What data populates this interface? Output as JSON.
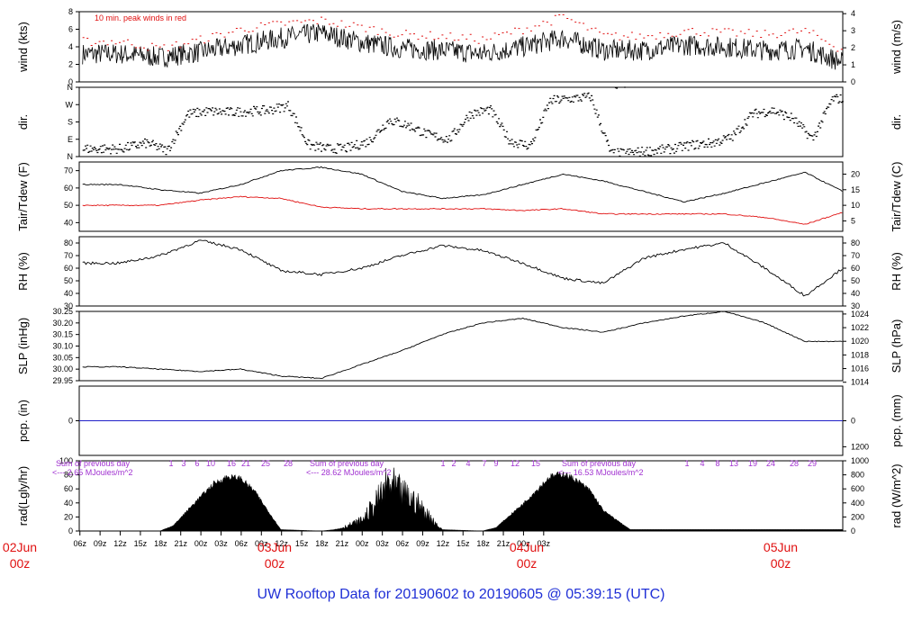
{
  "title": "UW Rooftop Data for 20190602  to  20190605 @ 05:39:15  (UTC)",
  "colors": {
    "title": "#1f2fd6",
    "dates": "#e01010",
    "peak": "#e01010",
    "dew": "#e01010",
    "precip": "#2020c8",
    "solar_note": "#a030d0",
    "line": "#000000"
  },
  "x_axis": {
    "hour_ticks": [
      "06z",
      "09z",
      "12z",
      "15z",
      "18z",
      "21z",
      "00z",
      "03z",
      "06z",
      "09z",
      "12z",
      "15z",
      "18z",
      "21z",
      "00z",
      "03z",
      "06z",
      "09z",
      "12z",
      "15z",
      "18z",
      "21z",
      "00z",
      "03z"
    ],
    "date_labels": [
      {
        "date": "02Jun",
        "time": "00z"
      },
      {
        "date": "03Jun",
        "time": "00z"
      },
      {
        "date": "04Jun",
        "time": "00z"
      },
      {
        "date": "05Jun",
        "time": "00z"
      }
    ]
  },
  "chart_data": [
    {
      "type": "line",
      "name": "wind",
      "ylabel": "wind (kts)",
      "ylabel_right": "wind (m/s)",
      "ylim": [
        0,
        8
      ],
      "yticks": [
        "0",
        "2",
        "4",
        "6",
        "8"
      ],
      "yticks_right": [
        "0",
        "1",
        "2",
        "3",
        "4"
      ],
      "annotation": "10 min. peak winds in red",
      "x_hours": [
        6,
        12,
        18,
        24,
        30,
        36,
        42,
        48,
        54,
        60,
        66,
        72,
        78,
        84,
        90,
        96,
        102,
        108,
        113.6
      ],
      "series": [
        {
          "values": [
            3.2,
            2.8,
            3.4,
            4.2,
            5.0,
            5.6,
            4.5,
            3.8,
            3.6,
            3.2,
            4.0,
            5.0,
            3.6,
            3.6,
            4.2,
            4.0,
            3.6,
            3.8,
            2.2
          ]
        },
        {
          "values": [
            4.4,
            3.6,
            4.6,
            5.8,
            6.4,
            6.8,
            6.0,
            5.2,
            5.0,
            4.6,
            5.8,
            7.2,
            5.0,
            5.0,
            5.6,
            5.4,
            5.2,
            5.6,
            3.4
          ]
        }
      ]
    },
    {
      "type": "scatter",
      "name": "direction",
      "ylabel": "dir.",
      "ylabel_right": "dir.",
      "yticks": [
        "N",
        "E",
        "S",
        "W",
        "N"
      ],
      "x_hours": [
        6,
        10,
        13,
        16,
        19,
        22,
        25,
        28,
        31,
        34,
        37,
        40,
        43,
        46,
        49,
        52,
        55,
        58,
        61,
        64,
        67,
        70,
        73,
        76,
        79,
        82,
        85,
        88,
        91,
        94,
        97,
        100,
        103,
        106,
        109,
        112
      ],
      "series": [
        {
          "values": [
            40,
            70,
            30,
            220,
            235,
            230,
            235,
            240,
            265,
            60,
            40,
            45,
            80,
            190,
            160,
            110,
            90,
            220,
            245,
            80,
            55,
            290,
            300,
            310,
            15,
            20,
            30,
            40,
            60,
            70,
            100,
            220,
            240,
            200,
            90,
            300
          ]
        }
      ]
    },
    {
      "type": "line",
      "name": "temperature",
      "ylabel": "Tair/Tdew (F)",
      "ylabel_right": "Tair/Tdew (C)",
      "ylim": [
        35,
        75
      ],
      "yticks": [
        "40",
        "50",
        "60",
        "70"
      ],
      "yticks_right": [
        "5",
        "10",
        "15",
        "20"
      ],
      "x_hours": [
        6,
        12,
        18,
        24,
        30,
        36,
        42,
        48,
        54,
        60,
        66,
        72,
        78,
        84,
        90,
        96,
        102,
        108,
        113.6
      ],
      "series": [
        {
          "values": [
            62,
            59,
            57,
            62,
            70,
            72,
            68,
            58,
            54,
            56,
            62,
            68,
            64,
            58,
            52,
            57,
            63,
            69,
            58
          ]
        },
        {
          "values": [
            50,
            50,
            53,
            55,
            54,
            49,
            48,
            48,
            48,
            48,
            47,
            48,
            45,
            45,
            45,
            45,
            43,
            39,
            46
          ]
        }
      ]
    },
    {
      "type": "line",
      "name": "relative-humidity",
      "ylabel": "RH (%)",
      "ylabel_right": "RH (%)",
      "ylim": [
        30,
        85
      ],
      "yticks": [
        "30",
        "40",
        "50",
        "60",
        "70",
        "80"
      ],
      "yticks_right": [
        "30",
        "40",
        "50",
        "60",
        "70",
        "80"
      ],
      "x_hours": [
        6,
        12,
        18,
        24,
        30,
        36,
        42,
        48,
        54,
        60,
        66,
        72,
        78,
        84,
        90,
        96,
        102,
        108,
        113.6
      ],
      "series": [
        {
          "values": [
            64,
            70,
            82,
            75,
            58,
            55,
            60,
            70,
            78,
            74,
            64,
            52,
            48,
            68,
            75,
            80,
            60,
            38,
            60
          ]
        }
      ]
    },
    {
      "type": "line",
      "name": "pressure",
      "ylabel": "SLP (inHg)",
      "ylabel_right": "SLP (hPa)",
      "ylim": [
        29.95,
        30.25
      ],
      "yticks": [
        "29.95",
        "30.00",
        "30.05",
        "30.10",
        "30.15",
        "30.20",
        "30.25"
      ],
      "yticks_right": [
        "1014",
        "1016",
        "1018",
        "1020",
        "1022",
        "1024"
      ],
      "x_hours": [
        6,
        12,
        18,
        24,
        30,
        36,
        42,
        48,
        54,
        60,
        66,
        72,
        78,
        84,
        90,
        96,
        102,
        108,
        113.6
      ],
      "series": [
        {
          "values": [
            30.01,
            30.0,
            29.99,
            30.0,
            29.97,
            29.96,
            30.02,
            30.08,
            30.15,
            30.2,
            30.22,
            30.18,
            30.16,
            30.2,
            30.23,
            30.25,
            30.2,
            30.12,
            30.12
          ]
        }
      ]
    },
    {
      "type": "line",
      "name": "precipitation",
      "ylabel": "pcp. (in)",
      "ylabel_right": "pcp. (mm)",
      "yticks": [
        "0"
      ],
      "yticks_right": [
        "0"
      ],
      "x_hours": [
        6,
        113.6
      ],
      "series": [
        {
          "values": [
            0,
            0
          ]
        }
      ]
    },
    {
      "type": "area",
      "name": "solar-radiation",
      "ylabel": "rad(Lgly/hr)",
      "ylabel_right": "rad (W/m^2)",
      "ylim": [
        0,
        100
      ],
      "yticks": [
        "0",
        "20",
        "40",
        "60",
        "80",
        "100"
      ],
      "yticks_right": [
        "0",
        "200",
        "400",
        "600",
        "800",
        "1000",
        "1200"
      ],
      "x_hours": [
        6,
        12,
        14,
        17,
        20,
        22,
        24,
        26,
        30,
        36,
        38,
        40,
        42,
        44,
        46,
        48,
        50,
        54,
        60,
        62,
        66,
        70,
        72,
        74,
        76,
        78,
        82
      ],
      "series": [
        {
          "values": [
            0,
            0,
            8,
            40,
            70,
            80,
            78,
            60,
            2,
            0,
            2,
            10,
            20,
            50,
            90,
            70,
            55,
            2,
            0,
            5,
            40,
            80,
            85,
            75,
            60,
            30,
            2
          ]
        }
      ],
      "notes": [
        {
          "label": "Sum of previous day",
          "value": "<--- 2.65 MJoules/m^2"
        },
        {
          "label": "Sum of previous day",
          "value": "<--- 28.62 MJoules/m^2"
        },
        {
          "label": "Sum of previous day",
          "value": "<--- 16.53 MJoules/m^2"
        }
      ],
      "top_ticks": [
        "1",
        "3",
        "6",
        "10",
        "16",
        "21",
        "25",
        "28",
        "1",
        "2",
        "4",
        "7",
        "9",
        "12",
        "15",
        "1",
        "4",
        "8",
        "13",
        "19",
        "24",
        "28",
        "29"
      ]
    }
  ]
}
